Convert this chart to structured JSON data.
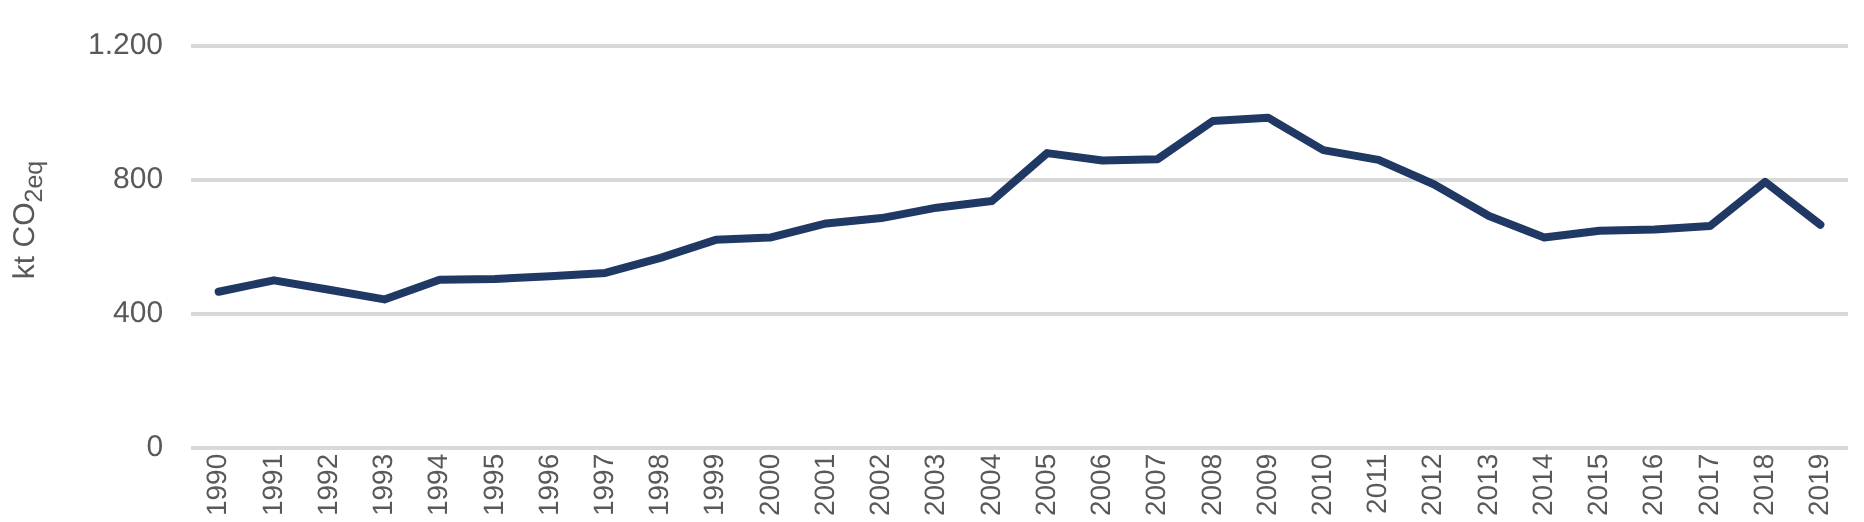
{
  "chart_data": {
    "type": "line",
    "ylabel": "kt CO$_{2eq}$",
    "categories": [
      "1990",
      "1991",
      "1992",
      "1993",
      "1994",
      "1995",
      "1996",
      "1997",
      "1998",
      "1999",
      "2000",
      "2001",
      "2002",
      "2003",
      "2004",
      "2005",
      "2006",
      "2007",
      "2008",
      "2009",
      "2010",
      "2011",
      "2012",
      "2013",
      "2014",
      "2015",
      "2016",
      "2017",
      "2018",
      "2019"
    ],
    "series": [
      {
        "color": "#1f3864",
        "values": [
          466,
          500,
          472,
          443,
          502,
          504,
          512,
          522,
          567,
          621,
          628,
          670,
          686,
          717,
          737,
          880,
          858,
          862,
          976,
          986,
          889,
          860,
          787,
          692,
          628,
          648,
          652,
          662,
          794,
          666
        ]
      }
    ],
    "ylim": [
      0,
      1200
    ],
    "yticks": [
      0,
      400,
      800,
      {
        "value": 1200,
        "label": "1.200"
      }
    ],
    "grid": "y",
    "legend": false,
    "marker": "none",
    "line_style": "solid"
  }
}
